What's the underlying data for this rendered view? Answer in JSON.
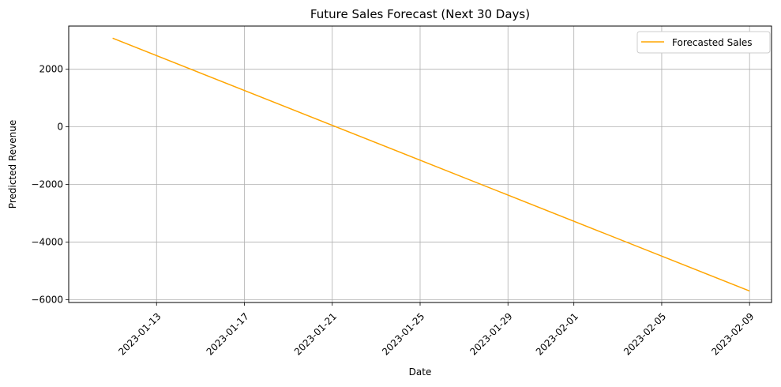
{
  "chart_data": {
    "type": "line",
    "title": "Future Sales Forecast (Next 30 Days)",
    "xlabel": "Date",
    "ylabel": "Predicted Revenue",
    "xlim": [
      "2023-01-09",
      "2023-02-10"
    ],
    "ylim": [
      -6100,
      3500
    ],
    "x_ticks": [
      "2023-01-13",
      "2023-01-17",
      "2023-01-21",
      "2023-01-25",
      "2023-01-29",
      "2023-02-01",
      "2023-02-05",
      "2023-02-09"
    ],
    "y_ticks": [
      -6000,
      -4000,
      -2000,
      0,
      2000
    ],
    "y_tick_labels": [
      "−6000",
      "−4000",
      "−2000",
      "0",
      "2000"
    ],
    "grid": true,
    "legend_position": "upper-right",
    "series": [
      {
        "name": "Forecasted Sales",
        "color": "#FFA500",
        "x": [
          "2023-01-11",
          "2023-02-09"
        ],
        "y": [
          3080,
          -5700
        ]
      }
    ]
  }
}
